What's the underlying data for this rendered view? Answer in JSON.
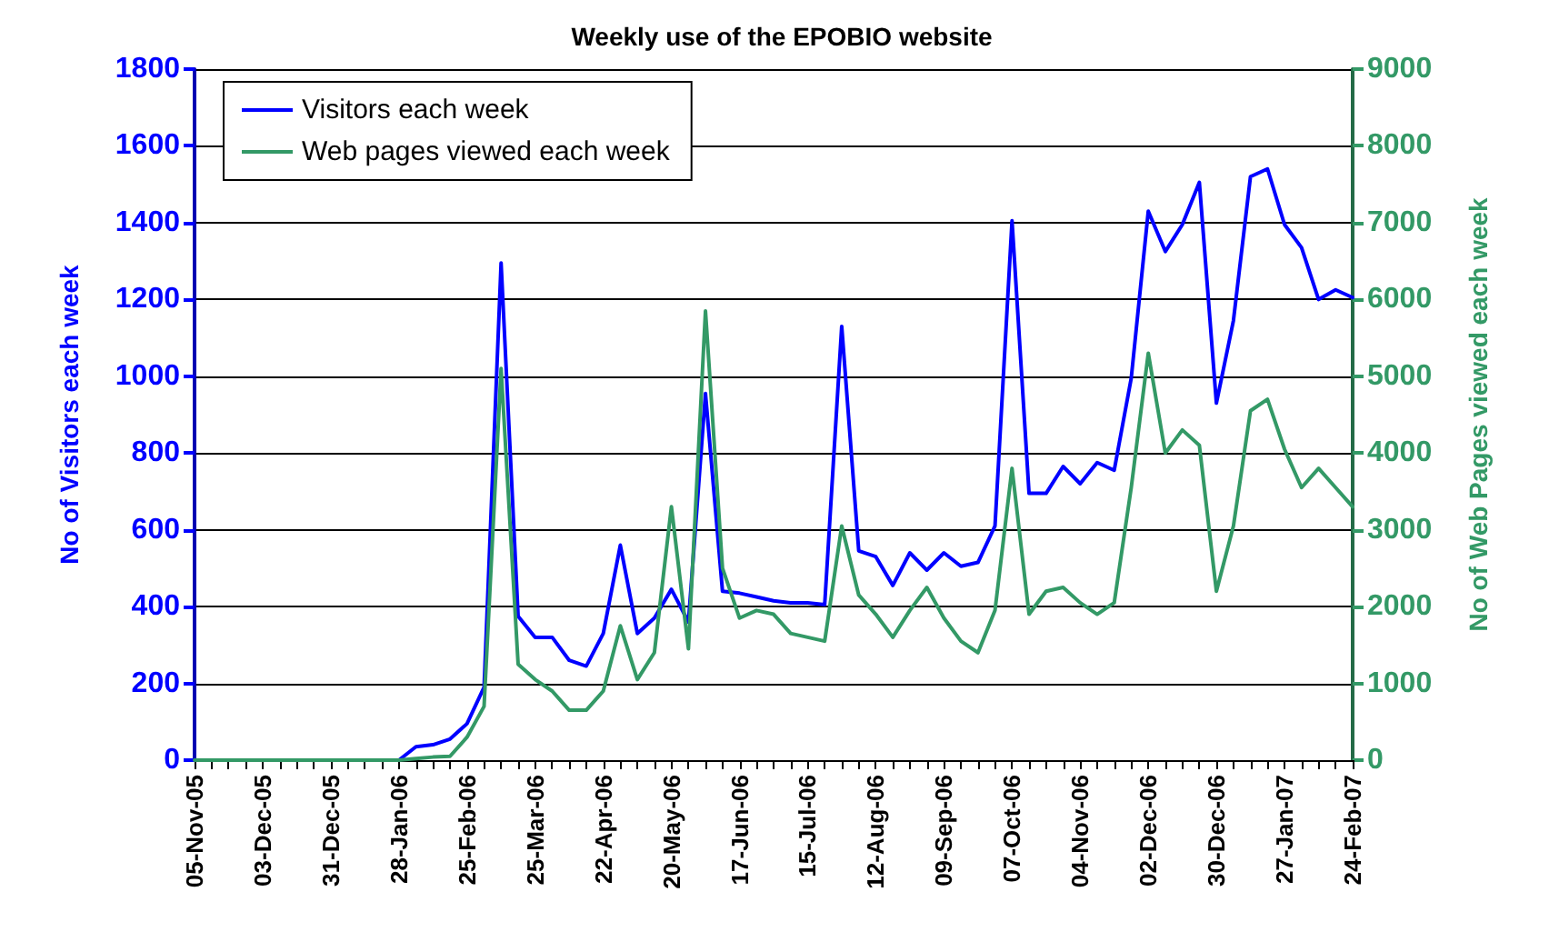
{
  "chart_data": {
    "type": "line",
    "title": "Weekly use of the EPOBIO website",
    "ylabel": "No of Visitors each week",
    "y2label": "No of Web Pages viewed each week",
    "categories": [
      "05-Nov-05",
      null,
      null,
      null,
      "03-Dec-05",
      null,
      null,
      null,
      "31-Dec-05",
      null,
      null,
      null,
      "28-Jan-06",
      null,
      null,
      null,
      "25-Feb-06",
      null,
      null,
      null,
      "25-Mar-06",
      null,
      null,
      null,
      "22-Apr-06",
      null,
      null,
      null,
      "20-May-06",
      null,
      null,
      null,
      "17-Jun-06",
      null,
      null,
      null,
      "15-Jul-06",
      null,
      null,
      null,
      "12-Aug-06",
      null,
      null,
      null,
      "09-Sep-06",
      null,
      null,
      null,
      "07-Oct-06",
      null,
      null,
      null,
      "04-Nov-06",
      null,
      null,
      null,
      "02-Dec-06",
      null,
      null,
      null,
      "30-Dec-06",
      null,
      null,
      null,
      "27-Jan-07",
      null,
      null,
      null,
      "24-Feb-07"
    ],
    "series": [
      {
        "name": "Visitors each week",
        "color": "#0000ff",
        "values": [
          0,
          0,
          0,
          0,
          0,
          0,
          0,
          0,
          0,
          0,
          0,
          0,
          0,
          35,
          40,
          55,
          95,
          190,
          1295,
          375,
          320,
          320,
          260,
          245,
          330,
          560,
          330,
          370,
          445,
          360,
          955,
          440,
          435,
          425,
          415,
          410,
          410,
          405,
          1130,
          545,
          530,
          455,
          540,
          495,
          540,
          505,
          515,
          610,
          1405,
          695,
          695,
          765,
          720,
          775,
          755,
          995,
          1430,
          1325,
          1395,
          1505,
          930,
          1145,
          1520,
          1540,
          1395,
          1335,
          1200,
          1225,
          1205
        ]
      },
      {
        "name": "Web pages viewed each week",
        "color": "#339966",
        "axis": "y2",
        "values": [
          0,
          0,
          0,
          0,
          0,
          0,
          0,
          0,
          0,
          0,
          0,
          0,
          0,
          20,
          40,
          50,
          300,
          700,
          5100,
          1250,
          1050,
          900,
          650,
          650,
          900,
          1750,
          1050,
          1400,
          3300,
          1450,
          5850,
          2500,
          1850,
          1950,
          1900,
          1650,
          1600,
          1550,
          3050,
          2150,
          1900,
          1600,
          1950,
          2250,
          1850,
          1550,
          1400,
          1950,
          3800,
          1900,
          2200,
          2250,
          2050,
          1900,
          2050,
          3550,
          5300,
          4000,
          4300,
          4100,
          2200,
          3050,
          4550,
          4700,
          4050,
          3550,
          3800,
          3550,
          3300
        ]
      }
    ],
    "ylim": [
      0,
      1800
    ],
    "yticks": [
      0,
      200,
      400,
      600,
      800,
      1000,
      1200,
      1400,
      1600,
      1800
    ],
    "y2lim": [
      0,
      9000
    ],
    "y2ticks": [
      0,
      1000,
      2000,
      3000,
      4000,
      5000,
      6000,
      7000,
      8000,
      9000
    ],
    "grid": "y",
    "legend": "top left",
    "marker": "none",
    "line_style": "solid"
  }
}
